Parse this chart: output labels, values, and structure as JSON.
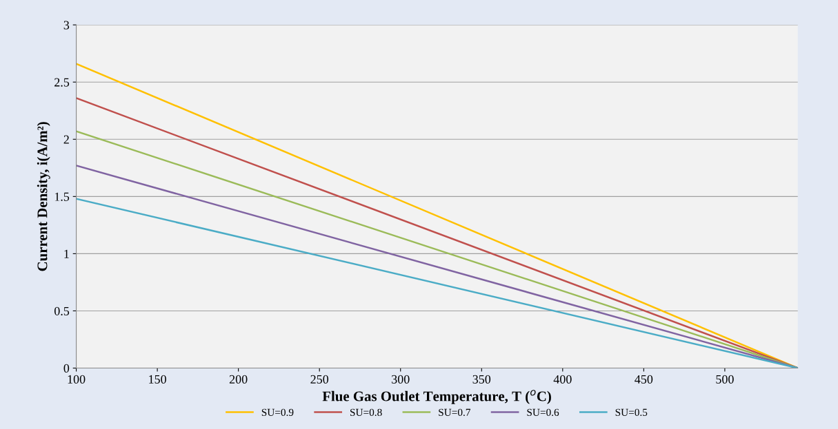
{
  "chart_data": {
    "type": "line",
    "xlabel": "Flue Gas Outlet Temperature, T ($^{o}$C)",
    "ylabel": "Current Density, i(A/m²)",
    "x": [
      100,
      545
    ],
    "series": [
      {
        "name": "SU=0.9",
        "color": "#ffc000",
        "values": [
          2.66,
          0
        ]
      },
      {
        "name": "SU=0.8",
        "color": "#c0504d",
        "values": [
          2.36,
          0
        ]
      },
      {
        "name": "SU=0.7",
        "color": "#9bbb59",
        "values": [
          2.07,
          0
        ]
      },
      {
        "name": "SU=0.6",
        "color": "#8064a2",
        "values": [
          1.77,
          0
        ]
      },
      {
        "name": "SU=0.5",
        "color": "#4bacc6",
        "values": [
          1.48,
          0
        ]
      }
    ],
    "xlim": [
      100,
      545
    ],
    "xticks": [
      100,
      150,
      200,
      250,
      300,
      350,
      400,
      450,
      500
    ],
    "ylim": [
      0,
      3
    ],
    "yticks": [
      0,
      0.5,
      1,
      1.5,
      2,
      2.5,
      3
    ],
    "grid": "y",
    "legend": "bottom",
    "marker": "none",
    "line_style": "solid"
  }
}
